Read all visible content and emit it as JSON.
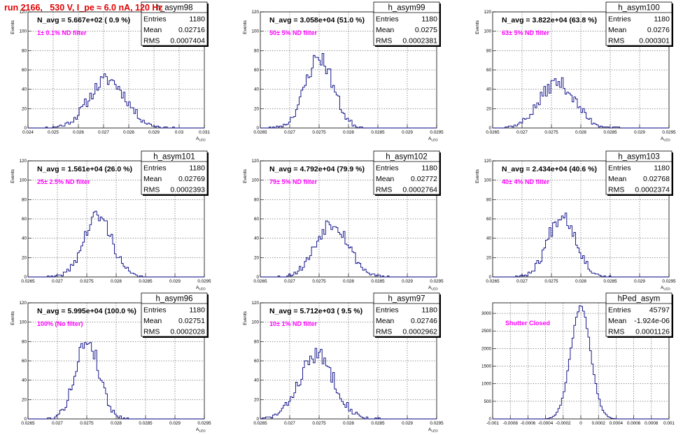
{
  "page": {
    "title": "run 2166,   530 V, I_pe ≈ 6.0 nA, 120 Hz"
  },
  "stats_labels": {
    "entries": "Entries",
    "mean": "Mean",
    "rms": "RMS"
  },
  "chart_data": [
    {
      "type": "histogram",
      "name": "h_asym98",
      "info": "N_avg = 5.667e+02 ( 0.9 %)",
      "filter": "1± 0.1% ND filter",
      "ylabel": "Events",
      "xlabel": "A_LED",
      "xlim": [
        0.024,
        0.031
      ],
      "ylim": [
        0,
        120
      ],
      "xticks": [
        "0.024",
        "0.025",
        "0.026",
        "0.027",
        "0.028",
        "0.029",
        "0.03",
        "0.031"
      ],
      "yticks": [
        "0",
        "20",
        "40",
        "60",
        "80",
        "100",
        "120"
      ],
      "entries": "1180",
      "mean": "0.02716",
      "rms": "0.0007404",
      "mu": 0.02716,
      "sigma": 0.00074,
      "peak": 50,
      "seed": 11
    },
    {
      "type": "histogram",
      "name": "h_asym99",
      "info": "N_avg = 3.058e+04 (51.0 %)",
      "filter": "50± 5% ND filter",
      "ylabel": "Events",
      "xlabel": "A_LED",
      "xlim": [
        0.0265,
        0.0295
      ],
      "ylim": [
        0,
        120
      ],
      "xticks": [
        "0.0265",
        "0.027",
        "0.0275",
        "0.028",
        "0.0285",
        "0.029",
        "0.0295"
      ],
      "yticks": [
        "0",
        "20",
        "40",
        "60",
        "80",
        "100",
        "120"
      ],
      "entries": "1180",
      "mean": "0.0275",
      "rms": "0.0002381",
      "mu": 0.0275,
      "sigma": 0.000238,
      "peak": 73,
      "seed": 23
    },
    {
      "type": "histogram",
      "name": "h_asym100",
      "info": "N_avg = 3.822e+04 (63.8 %)",
      "filter": "63± 5% ND filter",
      "ylabel": "Events",
      "xlabel": "A_LED",
      "xlim": [
        0.0265,
        0.0295
      ],
      "ylim": [
        0,
        120
      ],
      "xticks": [
        "0.0265",
        "0.027",
        "0.0275",
        "0.028",
        "0.0285",
        "0.029",
        "0.0295"
      ],
      "yticks": [
        "0",
        "20",
        "40",
        "60",
        "80",
        "100",
        "120"
      ],
      "entries": "1180",
      "mean": "0.0276",
      "rms": "0.000301",
      "mu": 0.0276,
      "sigma": 0.0003,
      "peak": 47,
      "seed": 37
    },
    {
      "type": "histogram",
      "name": "h_asym101",
      "info": "N_avg = 1.561e+04 (26.0 %)",
      "filter": "25± 2.5% ND filter",
      "ylabel": "Events",
      "xlabel": "A_LED",
      "xlim": [
        0.0265,
        0.0295
      ],
      "ylim": [
        0,
        120
      ],
      "xticks": [
        "0.0265",
        "0.027",
        "0.0275",
        "0.028",
        "0.0285",
        "0.029",
        "0.0295"
      ],
      "yticks": [
        "0",
        "20",
        "40",
        "60",
        "80",
        "100",
        "120"
      ],
      "entries": "1180",
      "mean": "0.02769",
      "rms": "0.0002393",
      "mu": 0.02769,
      "sigma": 0.000239,
      "peak": 63,
      "seed": 41
    },
    {
      "type": "histogram",
      "name": "h_asym102",
      "info": "N_avg = 4.792e+04 (79.9 %)",
      "filter": "79± 5% ND filter",
      "ylabel": "Events",
      "xlabel": "A_LED",
      "xlim": [
        0.0265,
        0.0295
      ],
      "ylim": [
        0,
        120
      ],
      "xticks": [
        "0.0265",
        "0.027",
        "0.0275",
        "0.028",
        "0.0285",
        "0.029",
        "0.0295"
      ],
      "yticks": [
        "0",
        "20",
        "40",
        "60",
        "80",
        "100",
        "120"
      ],
      "entries": "1180",
      "mean": "0.02772",
      "rms": "0.0002764",
      "mu": 0.02772,
      "sigma": 0.000276,
      "peak": 57,
      "seed": 53
    },
    {
      "type": "histogram",
      "name": "h_asym103",
      "info": "N_avg = 2.434e+04 (40.6 %)",
      "filter": "40± 4% ND filter",
      "ylabel": "Events",
      "xlabel": "A_LED",
      "xlim": [
        0.0265,
        0.0295
      ],
      "ylim": [
        0,
        120
      ],
      "xticks": [
        "0.0265",
        "0.027",
        "0.0275",
        "0.028",
        "0.0285",
        "0.029",
        "0.0295"
      ],
      "yticks": [
        "0",
        "20",
        "40",
        "60",
        "80",
        "100",
        "120"
      ],
      "entries": "1180",
      "mean": "0.02768",
      "rms": "0.0002374",
      "mu": 0.02768,
      "sigma": 0.000237,
      "peak": 65,
      "seed": 67
    },
    {
      "type": "histogram",
      "name": "h_asym96",
      "info": "N_avg = 5.995e+04 (100.0 %)",
      "filter": "100% (No filter)",
      "ylabel": "Events",
      "xlabel": "A_LED",
      "xlim": [
        0.0265,
        0.0295
      ],
      "ylim": [
        0,
        120
      ],
      "xticks": [
        "0.0265",
        "0.027",
        "0.0275",
        "0.028",
        "0.0285",
        "0.029",
        "0.0295"
      ],
      "yticks": [
        "0",
        "20",
        "40",
        "60",
        "80",
        "100",
        "120"
      ],
      "entries": "1180",
      "mean": "0.02751",
      "rms": "0.0002028",
      "mu": 0.02751,
      "sigma": 0.000203,
      "peak": 81,
      "seed": 79
    },
    {
      "type": "histogram",
      "name": "h_asym97",
      "info": "N_avg = 5.712e+03 ( 9.5 %)",
      "filter": "10± 1% ND filter",
      "ylabel": "Events",
      "xlabel": "A_LED",
      "xlim": [
        0.0265,
        0.0295
      ],
      "ylim": [
        0,
        120
      ],
      "xticks": [
        "0.0265",
        "0.027",
        "0.0275",
        "0.028",
        "0.0285",
        "0.029",
        "0.0295"
      ],
      "yticks": [
        "0",
        "20",
        "40",
        "60",
        "80",
        "100",
        "120"
      ],
      "entries": "1180",
      "mean": "0.02746",
      "rms": "0.0002962",
      "mu": 0.02746,
      "sigma": 0.000296,
      "peak": 66,
      "seed": 83
    },
    {
      "type": "histogram",
      "name": "hPed_asym",
      "info": "",
      "filter": "Shutter Closed",
      "ylabel": "",
      "xlabel": "",
      "xlim": [
        -0.001,
        0.001
      ],
      "ylim": [
        0,
        3300
      ],
      "xticks": [
        "-0.001",
        "-0.0008",
        "-0.0006",
        "-0.0004",
        "-0.0002",
        "0",
        "0.0002",
        "0.0004",
        "0.0006",
        "0.0008",
        "0.001"
      ],
      "yticks": [
        "0",
        "500",
        "1000",
        "1500",
        "2000",
        "2500",
        "3000"
      ],
      "entries": "45797",
      "mean": "-1.924e-06",
      "rms": "0.0001126",
      "mu": -1.9e-06,
      "sigma": 0.0001126,
      "peak": 3180,
      "seed": 97
    }
  ]
}
